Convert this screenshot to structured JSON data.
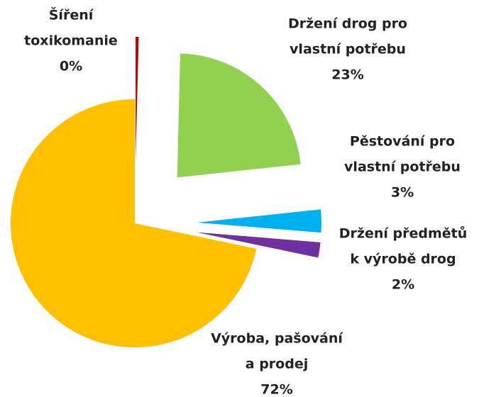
{
  "chart_data": {
    "type": "pie",
    "categories": [
      [
        "Šíření",
        "toxikomanie"
      ],
      [
        "Držení drog pro",
        "vlastní potřebu"
      ],
      [
        "Pěstování pro",
        "vlastní potřebu"
      ],
      [
        "Držení předmětů",
        "k výrobě drog"
      ],
      [
        "Výroba, pašování",
        "a prodej"
      ]
    ],
    "values": [
      0.4,
      23,
      3,
      2,
      72
    ],
    "value_labels": [
      "0%",
      "23%",
      "3%",
      "2%",
      "72%"
    ],
    "colors": [
      "#c00000",
      "#92d050",
      "#00b0f0",
      "#7030a0",
      "#ffc000"
    ]
  }
}
